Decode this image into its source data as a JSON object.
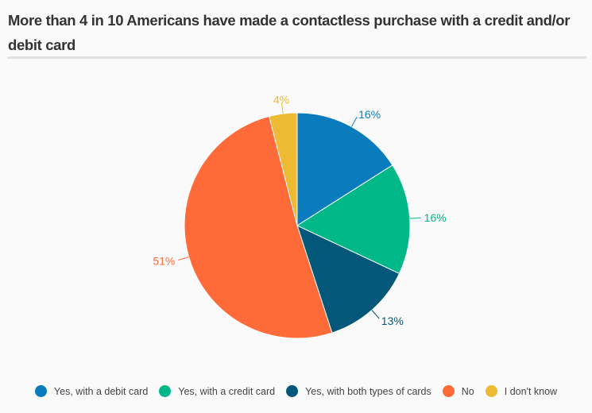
{
  "chart_data": {
    "type": "pie",
    "title": "More than 4 in 10 Americans have made a contactless purchase with a credit and/or debit card",
    "categories": [
      "Yes, with a debit card",
      "Yes, with a credit card",
      "Yes, with both types of cards",
      "No",
      "I don't know"
    ],
    "values": [
      16,
      16,
      13,
      51,
      4
    ],
    "labels": [
      "16%",
      "16%",
      "13%",
      "51%",
      "4%"
    ],
    "colors": [
      "#0a7bbd",
      "#00b887",
      "#03587a",
      "#ff6b38",
      "#ecba33"
    ],
    "legend_position": "bottom"
  }
}
